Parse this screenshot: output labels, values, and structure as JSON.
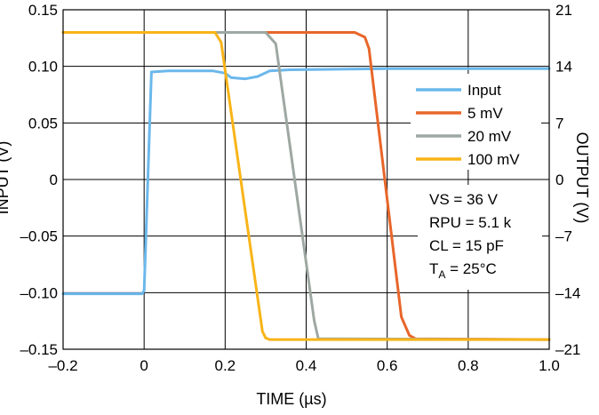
{
  "chart_data": {
    "type": "line",
    "xlabel": "TIME (µs)",
    "ylabel_left": "INPUT (V)",
    "ylabel_right": "OUTPUT (V)",
    "xlim": [
      -0.2,
      1.0
    ],
    "ylim_left": [
      -0.15,
      0.15
    ],
    "ylim_right": [
      -21,
      21
    ],
    "x_ticks": [
      -0.2,
      0,
      0.2,
      0.4,
      0.6,
      0.8,
      1.0
    ],
    "x_tick_labels": [
      "–0.2",
      "0",
      "0.2",
      "0.4",
      "0.6",
      "0.8",
      "1.0"
    ],
    "y_left_ticks": [
      -0.15,
      -0.1,
      -0.05,
      0,
      0.05,
      0.1,
      0.15
    ],
    "y_left_tick_labels": [
      "–0.15",
      "–0.10",
      "–0.05",
      "0",
      "0.05",
      "0.10",
      "0.15"
    ],
    "y_right_ticks": [
      -21,
      -14,
      -7,
      0,
      7,
      14,
      21
    ],
    "y_right_tick_labels": [
      "–21",
      "–14",
      "–7",
      "0",
      "7",
      "14",
      "21"
    ],
    "grid": true,
    "legend_position": "right",
    "series": [
      {
        "name": "Input",
        "axis": "left",
        "color": "#6bb8ec",
        "points": [
          [
            -0.2,
            -0.101
          ],
          [
            -0.005,
            -0.101
          ],
          [
            0.0,
            -0.098
          ],
          [
            0.018,
            0.095
          ],
          [
            0.06,
            0.096
          ],
          [
            0.17,
            0.096
          ],
          [
            0.2,
            0.094
          ],
          [
            0.215,
            0.09
          ],
          [
            0.25,
            0.089
          ],
          [
            0.28,
            0.091
          ],
          [
            0.31,
            0.096
          ],
          [
            0.36,
            0.097
          ],
          [
            0.6,
            0.098
          ],
          [
            1.0,
            0.098
          ]
        ]
      },
      {
        "name": "5 mV",
        "axis": "right",
        "color": "#e8662a",
        "points": [
          [
            -0.2,
            18.2
          ],
          [
            0.52,
            18.2
          ],
          [
            0.545,
            17.6
          ],
          [
            0.555,
            16.2
          ],
          [
            0.635,
            -17.0
          ],
          [
            0.655,
            -19.3
          ],
          [
            0.67,
            -19.7
          ],
          [
            1.0,
            -19.8
          ]
        ]
      },
      {
        "name": "20 mV",
        "axis": "right",
        "color": "#9ea8a2",
        "points": [
          [
            -0.2,
            18.2
          ],
          [
            0.3,
            18.2
          ],
          [
            0.325,
            16.8
          ],
          [
            0.42,
            -17.5
          ],
          [
            0.43,
            -19.7
          ],
          [
            1.0,
            -19.8
          ]
        ]
      },
      {
        "name": "100 mV",
        "axis": "right",
        "color": "#f8b418",
        "points": [
          [
            -0.2,
            18.2
          ],
          [
            0.175,
            18.2
          ],
          [
            0.19,
            17.0
          ],
          [
            0.292,
            -18.8
          ],
          [
            0.3,
            -19.6
          ],
          [
            0.31,
            -19.8
          ],
          [
            1.0,
            -19.8
          ]
        ]
      }
    ],
    "conditions": [
      "VS = 36 V",
      "RPU = 5.1 k",
      "CL = 15 pF",
      "TA = 25°C"
    ]
  }
}
